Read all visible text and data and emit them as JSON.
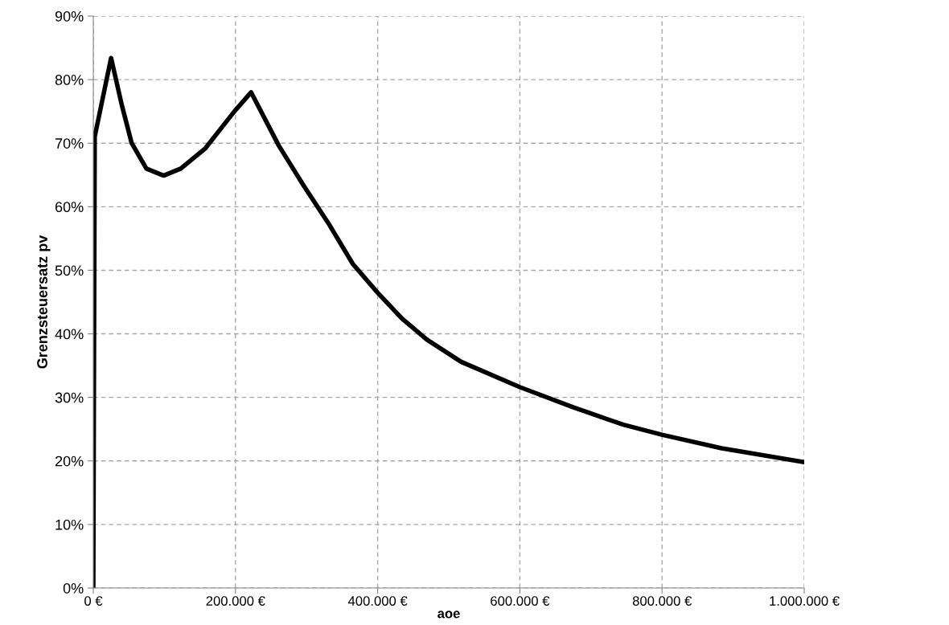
{
  "chart_data": {
    "type": "line",
    "xlabel": "aoe",
    "ylabel": "Grenzsteuersatz pv",
    "x": [
      0,
      2000,
      25000,
      40100,
      54000,
      74700,
      98900,
      123000,
      157700,
      199200,
      222000,
      261000,
      296000,
      330700,
      365000,
      399700,
      434300,
      469000,
      517400,
      600300,
      676300,
      745500,
      800800,
      883800,
      1000000
    ],
    "series": [
      {
        "color": "#000000",
        "values": [
          0,
          71.0,
          83.4,
          76.0,
          70.0,
          66.0,
          64.9,
          66.0,
          69.2,
          75.1,
          78.0,
          69.6,
          63.3,
          57.4,
          51.0,
          46.5,
          42.4,
          39.1,
          35.6,
          31.6,
          28.4,
          25.7,
          24.1,
          22.0,
          19.8
        ]
      }
    ],
    "xlim": [
      0,
      1000000
    ],
    "xticks": [
      {
        "value": 0,
        "label": "0 €"
      },
      {
        "value": 200000,
        "label": "200.000 €"
      },
      {
        "value": 400000,
        "label": "400.000 €"
      },
      {
        "value": 600000,
        "label": "600.000 €"
      },
      {
        "value": 800000,
        "label": "800.000 €"
      },
      {
        "value": 1000000,
        "label": "1.000.000 €"
      }
    ],
    "ylim": [
      0,
      90
    ],
    "yticks": [
      {
        "value": 0,
        "label": "0%"
      },
      {
        "value": 10,
        "label": "10%"
      },
      {
        "value": 20,
        "label": "20%"
      },
      {
        "value": 30,
        "label": "30%"
      },
      {
        "value": 40,
        "label": "40%"
      },
      {
        "value": 50,
        "label": "50%"
      },
      {
        "value": 60,
        "label": "60%"
      },
      {
        "value": 70,
        "label": "70%"
      },
      {
        "value": 80,
        "label": "80%"
      },
      {
        "value": 90,
        "label": "90%"
      }
    ],
    "grid": true,
    "line_style": "solid",
    "marker": "none"
  }
}
